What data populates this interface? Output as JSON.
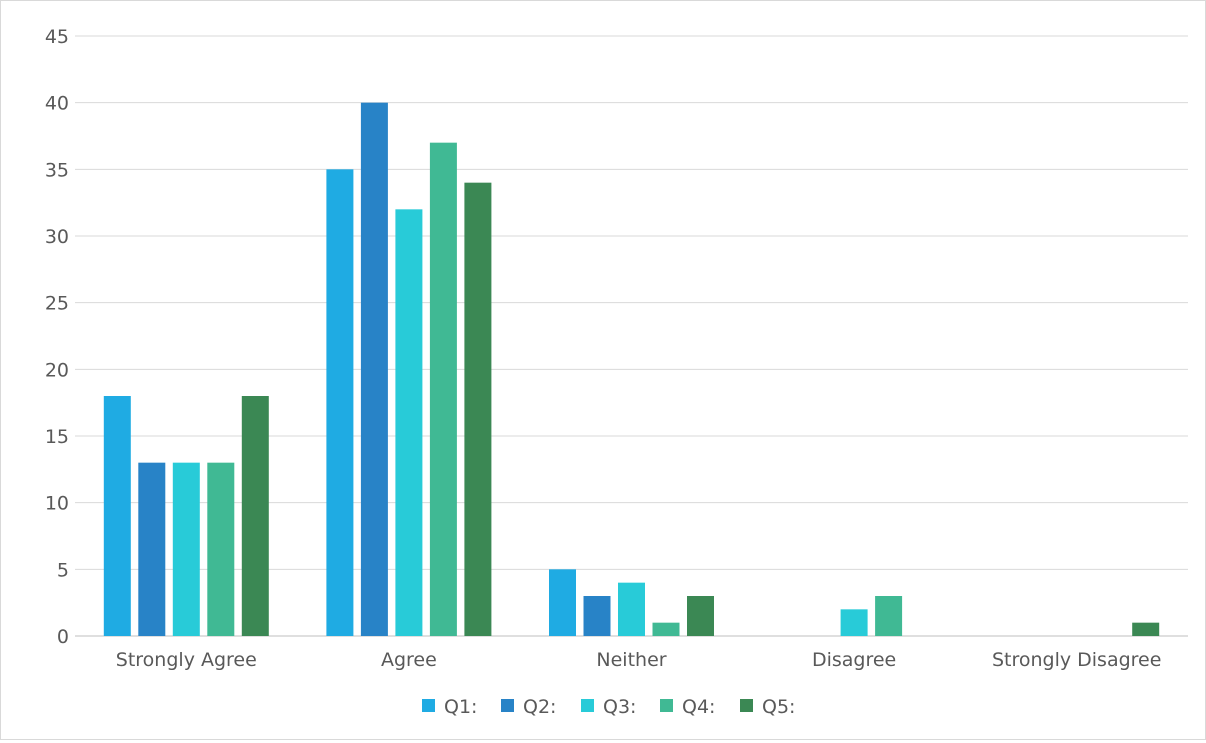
{
  "chart_data": {
    "type": "bar",
    "title": "",
    "xlabel": "",
    "ylabel": "",
    "categories": [
      "Strongly Agree",
      "Agree",
      "Neither",
      "Disagree",
      "Strongly Disagree"
    ],
    "ylim": [
      0,
      45
    ],
    "yticks": [
      "0",
      "5",
      "10",
      "15",
      "20",
      "25",
      "30",
      "35",
      "40",
      "45"
    ],
    "grid": true,
    "legend_position": "bottom",
    "series": [
      {
        "name": "Q1:",
        "color": "#1fabe3",
        "values": [
          18,
          35,
          5,
          0,
          0
        ]
      },
      {
        "name": "Q2:",
        "color": "#2883c7",
        "values": [
          13,
          40,
          3,
          0,
          0
        ]
      },
      {
        "name": "Q3:",
        "color": "#28cbd8",
        "values": [
          13,
          32,
          4,
          2,
          0
        ]
      },
      {
        "name": "Q4:",
        "color": "#40b994",
        "values": [
          13,
          37,
          1,
          3,
          0
        ]
      },
      {
        "name": "Q5:",
        "color": "#3b8854",
        "values": [
          18,
          34,
          3,
          0,
          1
        ]
      }
    ]
  }
}
